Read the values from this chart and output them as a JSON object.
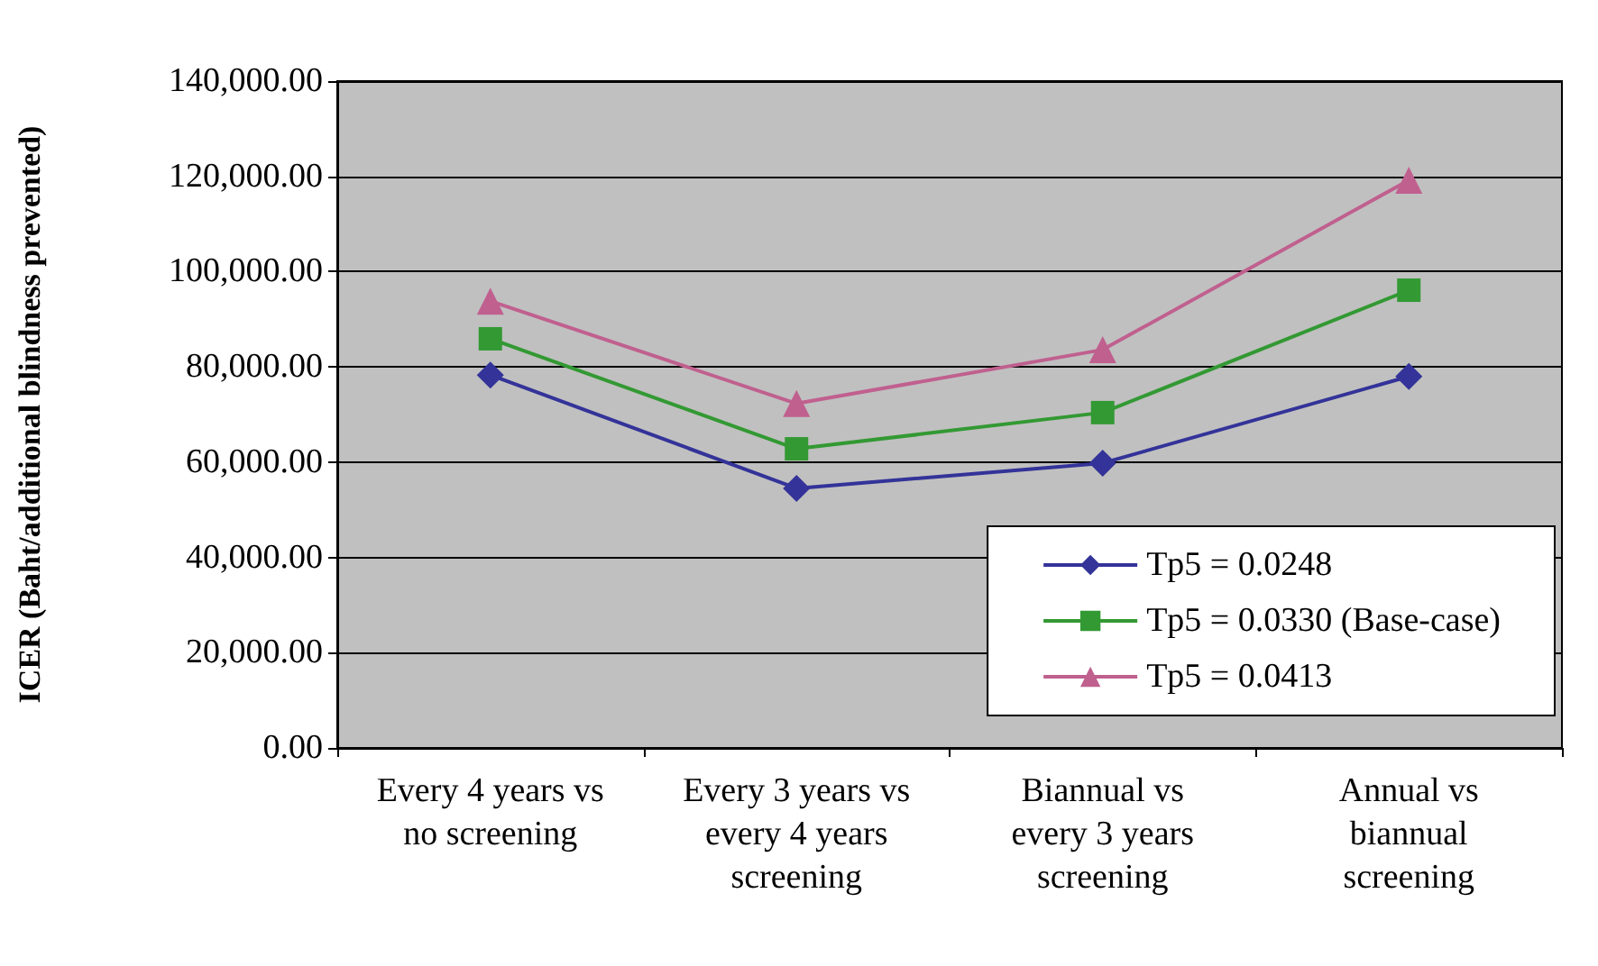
{
  "chart_data": {
    "type": "line",
    "ylabel": "ICER (Baht/additional blindness prevented)",
    "categories": [
      "Every 4 years vs\nno screening",
      "Every 3 years vs\nevery 4 years\nscreening",
      "Biannual vs\nevery 3 years\nscreening",
      "Annual vs\nbiannual\nscreening"
    ],
    "series": [
      {
        "name": "Tp5 = 0.0248",
        "color": "#333399",
        "marker": "diamond",
        "values": [
          78300,
          54500,
          59800,
          78000
        ]
      },
      {
        "name": "Tp5 = 0.0330 (Base-case)",
        "color": "#339933",
        "marker": "square",
        "values": [
          85900,
          62800,
          70400,
          96100
        ]
      },
      {
        "name": "Tp5 = 0.0413",
        "color": "#c0608f",
        "marker": "triangle",
        "values": [
          93800,
          72300,
          83600,
          119200
        ]
      }
    ],
    "ylim": [
      0,
      140000
    ],
    "yticks": [
      {
        "value": 0,
        "label": "0.00"
      },
      {
        "value": 20000,
        "label": "20,000.00"
      },
      {
        "value": 40000,
        "label": "40,000.00"
      },
      {
        "value": 60000,
        "label": "60,000.00"
      },
      {
        "value": 80000,
        "label": "80,000.00"
      },
      {
        "value": 100000,
        "label": "100,000.00"
      },
      {
        "value": 120000,
        "label": "120,000.00"
      },
      {
        "value": 140000,
        "label": "140,000.00"
      }
    ],
    "grid": "y",
    "legend": "bottom right",
    "line_style": "solid"
  }
}
